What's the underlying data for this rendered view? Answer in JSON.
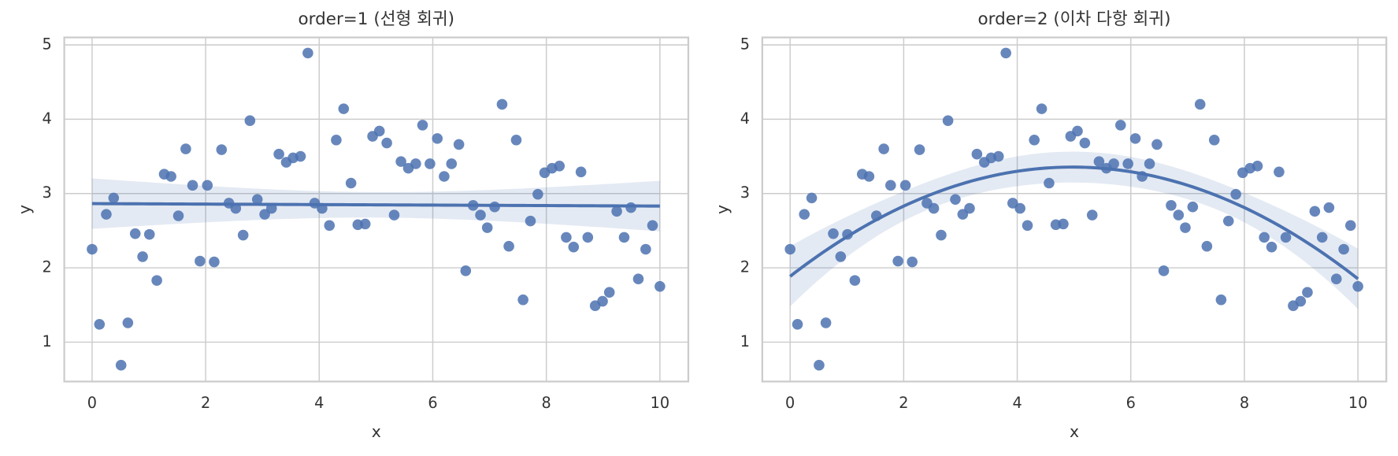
{
  "chart_data": [
    {
      "type": "scatter",
      "title": "order=1 (선형 회귀)",
      "x_label": "x",
      "y_label": "y",
      "regression_order": 1,
      "color": "#4c72b0",
      "grid": true,
      "x": [
        0.0,
        0.13,
        0.25,
        0.38,
        0.51,
        0.63,
        0.76,
        0.89,
        1.01,
        1.14,
        1.27,
        1.39,
        1.52,
        1.65,
        1.77,
        1.9,
        2.03,
        2.15,
        2.28,
        2.41,
        2.53,
        2.66,
        2.78,
        2.91,
        3.04,
        3.16,
        3.29,
        3.42,
        3.54,
        3.67,
        3.8,
        3.92,
        4.05,
        4.18,
        4.3,
        4.43,
        4.56,
        4.68,
        4.81,
        4.94,
        5.06,
        5.19,
        5.32,
        5.44,
        5.57,
        5.7,
        5.82,
        5.95,
        6.08,
        6.2,
        6.33,
        6.46,
        6.58,
        6.71,
        6.84,
        6.96,
        7.09,
        7.22,
        7.34,
        7.47,
        7.59,
        7.72,
        7.85,
        7.97,
        8.1,
        8.23,
        8.35,
        8.48,
        8.61,
        8.73,
        8.86,
        8.99,
        9.11,
        9.24,
        9.37,
        9.49,
        9.62,
        9.75,
        9.87,
        10.0
      ],
      "y": [
        2.25,
        1.24,
        2.72,
        2.94,
        0.69,
        1.26,
        2.46,
        2.15,
        2.45,
        1.83,
        3.26,
        3.23,
        2.7,
        3.6,
        3.11,
        2.09,
        3.11,
        2.08,
        3.59,
        2.87,
        2.8,
        2.44,
        3.98,
        2.92,
        2.72,
        2.8,
        3.53,
        3.42,
        3.48,
        3.5,
        4.89,
        2.87,
        2.8,
        2.57,
        3.72,
        4.14,
        3.14,
        2.58,
        2.59,
        3.77,
        3.84,
        3.68,
        2.71,
        3.43,
        3.34,
        3.4,
        3.92,
        3.4,
        3.74,
        3.23,
        3.4,
        3.66,
        1.96,
        2.84,
        2.71,
        2.54,
        2.82,
        4.2,
        2.29,
        3.72,
        1.57,
        2.63,
        2.99,
        3.28,
        3.34,
        3.37,
        2.41,
        2.28,
        3.29,
        2.41,
        1.49,
        1.55,
        1.67,
        2.76,
        2.41,
        2.81,
        1.85,
        2.25,
        2.57,
        1.75
      ],
      "xlim": [
        -0.49,
        10.5
      ],
      "ylim": [
        0.47,
        5.1
      ],
      "xticks": [
        0,
        2,
        4,
        6,
        8,
        10
      ],
      "yticks": [
        1,
        2,
        3,
        4,
        5
      ]
    },
    {
      "type": "scatter",
      "title": "order=2 (이차 다항 회귀)",
      "x_label": "x",
      "y_label": "y",
      "regression_order": 2,
      "color": "#4c72b0",
      "grid": true,
      "x": [
        0.0,
        0.13,
        0.25,
        0.38,
        0.51,
        0.63,
        0.76,
        0.89,
        1.01,
        1.14,
        1.27,
        1.39,
        1.52,
        1.65,
        1.77,
        1.9,
        2.03,
        2.15,
        2.28,
        2.41,
        2.53,
        2.66,
        2.78,
        2.91,
        3.04,
        3.16,
        3.29,
        3.42,
        3.54,
        3.67,
        3.8,
        3.92,
        4.05,
        4.18,
        4.3,
        4.43,
        4.56,
        4.68,
        4.81,
        4.94,
        5.06,
        5.19,
        5.32,
        5.44,
        5.57,
        5.7,
        5.82,
        5.95,
        6.08,
        6.2,
        6.33,
        6.46,
        6.58,
        6.71,
        6.84,
        6.96,
        7.09,
        7.22,
        7.34,
        7.47,
        7.59,
        7.72,
        7.85,
        7.97,
        8.1,
        8.23,
        8.35,
        8.48,
        8.61,
        8.73,
        8.86,
        8.99,
        9.11,
        9.24,
        9.37,
        9.49,
        9.62,
        9.75,
        9.87,
        10.0
      ],
      "y": [
        2.25,
        1.24,
        2.72,
        2.94,
        0.69,
        1.26,
        2.46,
        2.15,
        2.45,
        1.83,
        3.26,
        3.23,
        2.7,
        3.6,
        3.11,
        2.09,
        3.11,
        2.08,
        3.59,
        2.87,
        2.8,
        2.44,
        3.98,
        2.92,
        2.72,
        2.8,
        3.53,
        3.42,
        3.48,
        3.5,
        4.89,
        2.87,
        2.8,
        2.57,
        3.72,
        4.14,
        3.14,
        2.58,
        2.59,
        3.77,
        3.84,
        3.68,
        2.71,
        3.43,
        3.34,
        3.4,
        3.92,
        3.4,
        3.74,
        3.23,
        3.4,
        3.66,
        1.96,
        2.84,
        2.71,
        2.54,
        2.82,
        4.2,
        2.29,
        3.72,
        1.57,
        2.63,
        2.99,
        3.28,
        3.34,
        3.37,
        2.41,
        2.28,
        3.29,
        2.41,
        1.49,
        1.55,
        1.67,
        2.76,
        2.41,
        2.81,
        1.85,
        2.25,
        2.57,
        1.75
      ],
      "xlim": [
        -0.49,
        10.5
      ],
      "ylim": [
        0.47,
        5.1
      ],
      "xticks": [
        0,
        2,
        4,
        6,
        8,
        10
      ],
      "yticks": [
        1,
        2,
        3,
        4,
        5
      ]
    }
  ]
}
